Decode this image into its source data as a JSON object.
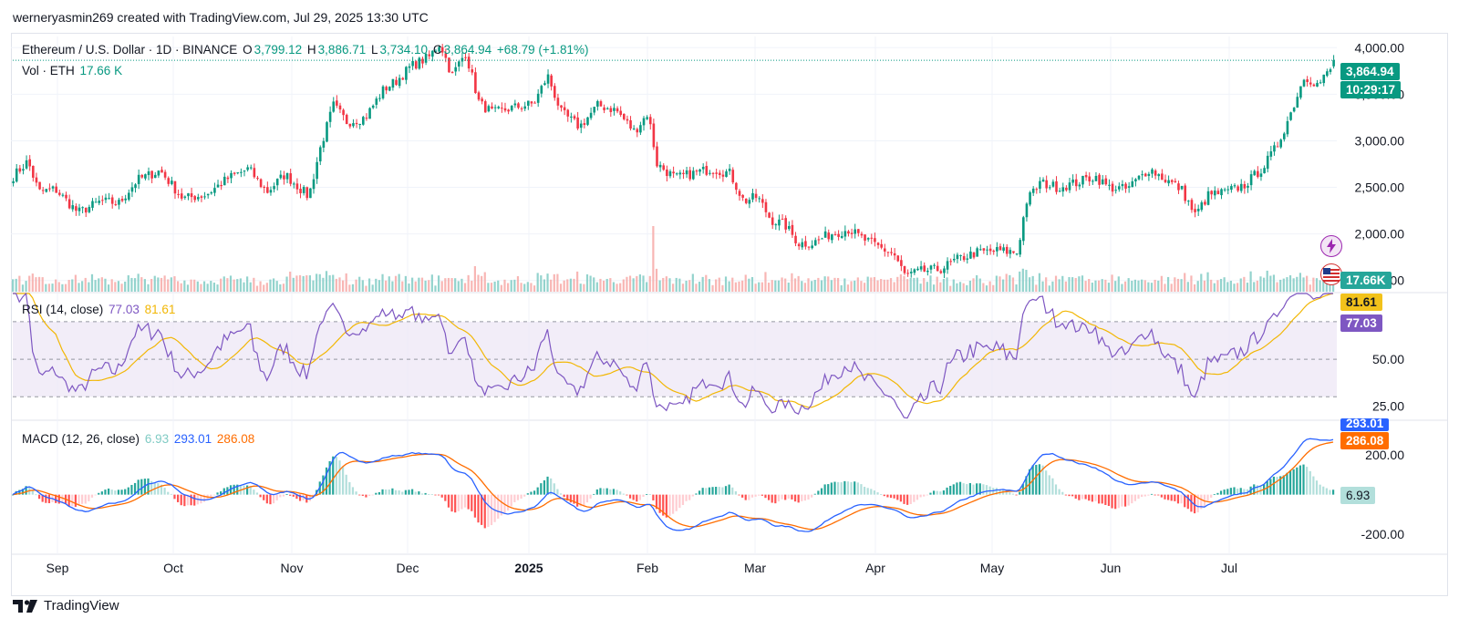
{
  "header": {
    "author_line": "werneryasmin269 created with TradingView.com, Jul 29, 2025 13:30 UTC"
  },
  "legend": {
    "symbol": "Ethereum / U.S. Dollar · 1D · BINANCE",
    "o_label": "O",
    "o_value": "3,799.12",
    "h_label": "H",
    "h_value": "3,886.71",
    "l_label": "L",
    "l_value": "3,734.10",
    "c_label": "C",
    "c_value": "3,864.94",
    "change": "+68.79 (+1.81%)",
    "vol_label": "Vol · ETH",
    "vol_value": "17.66 K",
    "rsi_label": "RSI (14, close)",
    "rsi_value": "77.03",
    "rsi_ma_value": "81.61",
    "macd_label": "MACD (12, 26, close)",
    "macd_hist": "6.93",
    "macd_line": "293.01",
    "macd_signal": "286.08"
  },
  "tags": {
    "price": "3,864.94",
    "countdown": "10:29:17",
    "volume": "17.66K",
    "rsi_ma": "81.61",
    "rsi": "77.03",
    "macd_line": "293.01",
    "macd_signal": "286.08",
    "macd_hist": "6.93"
  },
  "branding": {
    "logo_text": "TradingView"
  },
  "colors": {
    "up": "#089981",
    "down": "#f23645",
    "rsi": "#7e57c2",
    "rsi_ma": "#f2b705",
    "macd": "#2962ff",
    "signal": "#ff6d00",
    "hist_up": "#26a69a",
    "hist_down": "#ff5252"
  },
  "icons": [
    "lightning-icon",
    "us-flag-icon",
    "tradingview-logo-icon"
  ],
  "chart_data": [
    {
      "type": "candlestick",
      "title": "Ethereum / U.S. Dollar · 1D · BINANCE",
      "x_axis": [
        "Sep",
        "Oct",
        "Nov",
        "Dec",
        "2025",
        "Feb",
        "Mar",
        "Apr",
        "May",
        "Jun",
        "Jul"
      ],
      "y_ticks": [
        "1,500.00",
        "2,000.00",
        "2,500.00",
        "3,000.00",
        "3,500.00",
        "4,000.00"
      ],
      "ylim": [
        1380,
        4120
      ],
      "monthly_path": [
        {
          "x": "Sep",
          "close": 2470
        },
        {
          "x": "Oct",
          "close": 2550
        },
        {
          "x": "Nov",
          "close": 2480
        },
        {
          "x": "Dec",
          "close": 3700
        },
        {
          "x": "2025",
          "close": 3500
        },
        {
          "x": "Feb",
          "close": 3100
        },
        {
          "x": "Mar",
          "close": 2200
        },
        {
          "x": "Apr",
          "close": 1800
        },
        {
          "x": "May",
          "close": 1850
        },
        {
          "x": "Jun",
          "close": 2600
        },
        {
          "x": "Jul",
          "close": 2450
        }
      ],
      "last": {
        "open": 3799.12,
        "high": 3886.71,
        "low": 3734.1,
        "close": 3864.94
      }
    },
    {
      "type": "line",
      "title": "RSI (14, close)",
      "y_ticks": [
        "25.00",
        "50.00"
      ],
      "bands": [
        30,
        70
      ],
      "ylim": [
        18,
        85
      ],
      "series": [
        {
          "name": "RSI",
          "last": 77.03
        },
        {
          "name": "RSI MA",
          "last": 81.61
        }
      ]
    },
    {
      "type": "line",
      "title": "MACD (12, 26, close)",
      "y_ticks": [
        "-200.00",
        "200.00"
      ],
      "ylim": [
        -300,
        370
      ],
      "series": [
        {
          "name": "MACD",
          "last": 293.01
        },
        {
          "name": "Signal",
          "last": 286.08
        },
        {
          "name": "Histogram",
          "last": 6.93
        }
      ]
    }
  ]
}
